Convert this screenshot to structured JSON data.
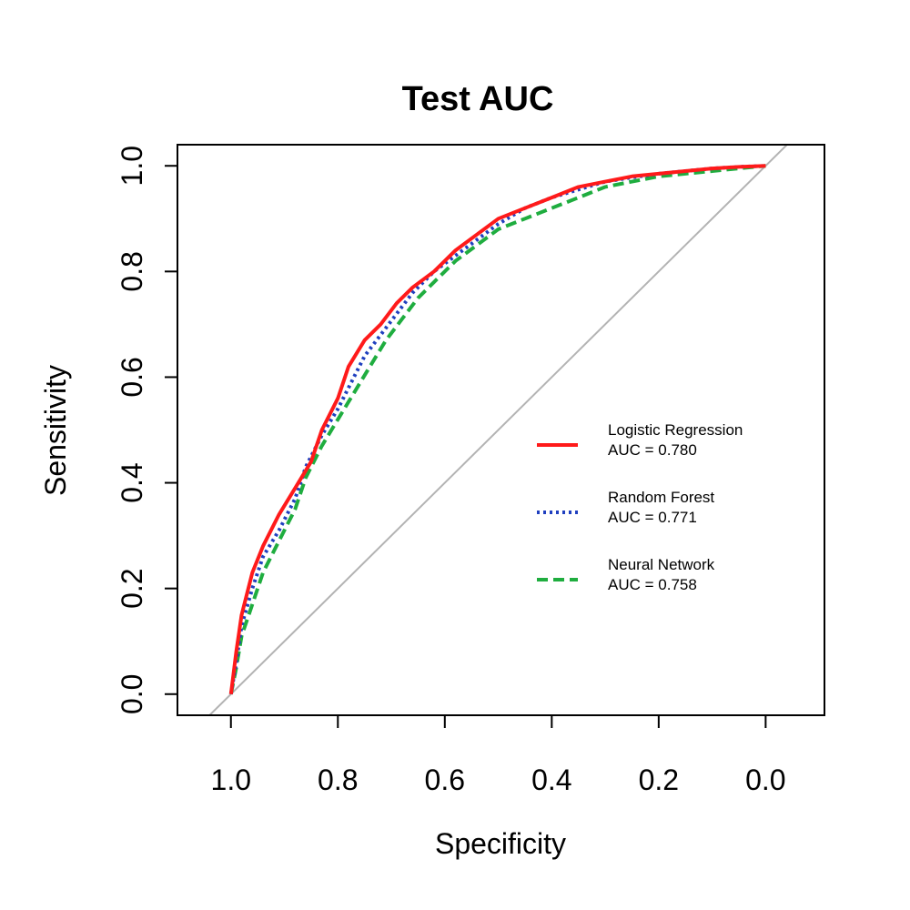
{
  "chart_data": {
    "type": "line",
    "title": "Test AUC",
    "xlabel": "Specificity",
    "ylabel": "Sensitivity",
    "xlim": [
      1.1,
      -0.11
    ],
    "ylim": [
      -0.04,
      1.04
    ],
    "x_reversed": true,
    "xticks": [
      1.0,
      0.8,
      0.6,
      0.4,
      0.2,
      0.0
    ],
    "xtick_labels": [
      "1.0",
      "0.8",
      "0.6",
      "0.4",
      "0.2",
      "0.0"
    ],
    "yticks": [
      0.0,
      0.2,
      0.4,
      0.6,
      0.8,
      1.0
    ],
    "ytick_labels": [
      "0.0",
      "0.2",
      "0.4",
      "0.6",
      "0.8",
      "1.0"
    ],
    "grid": false,
    "legend_position": "right",
    "reference_line": {
      "color": "#b3b3b3",
      "points": [
        [
          1.0,
          0.0
        ],
        [
          0.0,
          1.0
        ]
      ]
    },
    "series": [
      {
        "name": "Logistic Regression",
        "auc_label": "AUC = 0.780",
        "color": "#ff1a1a",
        "style": "solid",
        "x": [
          1.0,
          0.99,
          0.98,
          0.96,
          0.94,
          0.91,
          0.88,
          0.85,
          0.83,
          0.8,
          0.78,
          0.75,
          0.72,
          0.69,
          0.66,
          0.62,
          0.58,
          0.54,
          0.5,
          0.45,
          0.4,
          0.35,
          0.3,
          0.25,
          0.2,
          0.15,
          0.1,
          0.05,
          0.0
        ],
        "y": [
          0.0,
          0.08,
          0.15,
          0.23,
          0.28,
          0.34,
          0.39,
          0.44,
          0.5,
          0.56,
          0.62,
          0.67,
          0.7,
          0.74,
          0.77,
          0.8,
          0.84,
          0.87,
          0.9,
          0.92,
          0.94,
          0.96,
          0.97,
          0.98,
          0.985,
          0.99,
          0.995,
          0.998,
          1.0
        ]
      },
      {
        "name": "Random Forest",
        "auc_label": "AUC = 0.771",
        "color": "#1f3fbf",
        "style": "dotted",
        "x": [
          1.0,
          0.99,
          0.98,
          0.96,
          0.94,
          0.91,
          0.88,
          0.86,
          0.83,
          0.8,
          0.78,
          0.75,
          0.72,
          0.69,
          0.66,
          0.62,
          0.58,
          0.54,
          0.5,
          0.45,
          0.4,
          0.35,
          0.3,
          0.25,
          0.2,
          0.15,
          0.1,
          0.05,
          0.0
        ],
        "y": [
          0.0,
          0.06,
          0.13,
          0.2,
          0.26,
          0.31,
          0.37,
          0.43,
          0.49,
          0.54,
          0.58,
          0.64,
          0.68,
          0.72,
          0.76,
          0.8,
          0.83,
          0.86,
          0.89,
          0.92,
          0.94,
          0.955,
          0.97,
          0.978,
          0.985,
          0.99,
          0.995,
          0.998,
          1.0
        ]
      },
      {
        "name": "Neural Network",
        "auc_label": "AUC = 0.758",
        "color": "#1fad3f",
        "style": "dashed",
        "x": [
          1.0,
          0.99,
          0.98,
          0.96,
          0.94,
          0.91,
          0.88,
          0.86,
          0.83,
          0.8,
          0.77,
          0.74,
          0.71,
          0.68,
          0.65,
          0.62,
          0.58,
          0.54,
          0.5,
          0.45,
          0.4,
          0.35,
          0.3,
          0.25,
          0.2,
          0.15,
          0.1,
          0.05,
          0.0
        ],
        "y": [
          0.0,
          0.05,
          0.11,
          0.17,
          0.23,
          0.29,
          0.35,
          0.41,
          0.47,
          0.52,
          0.57,
          0.62,
          0.67,
          0.71,
          0.75,
          0.78,
          0.82,
          0.85,
          0.88,
          0.9,
          0.92,
          0.94,
          0.96,
          0.97,
          0.98,
          0.985,
          0.99,
          0.995,
          1.0
        ]
      }
    ]
  }
}
